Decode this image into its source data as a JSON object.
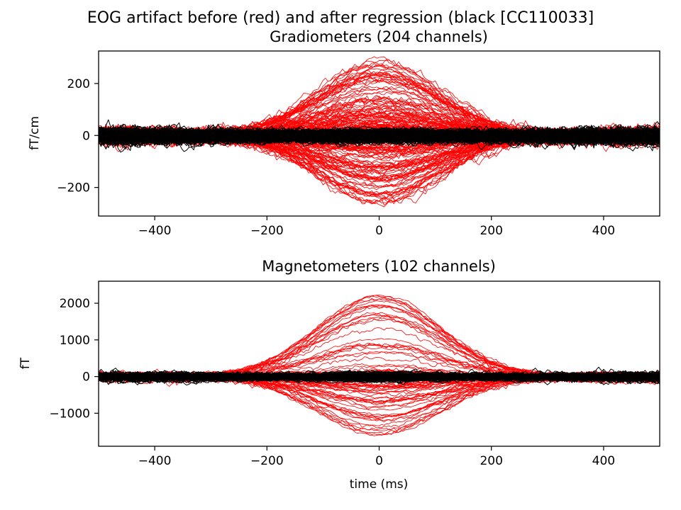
{
  "figure": {
    "suptitle": "EOG artifact before (red) and after regression (black [CC110033]"
  },
  "colors": {
    "before": "#ff0000",
    "after": "#000000",
    "axes": "#000000",
    "background": "#ffffff"
  },
  "chart_data": [
    {
      "type": "line",
      "title": "Gradiometers (204 channels)",
      "xlabel": "",
      "ylabel": "fT/cm",
      "xlim": [
        -500,
        500
      ],
      "ylim": [
        -310,
        325
      ],
      "xticks": [
        -400,
        -200,
        0,
        200,
        400
      ],
      "xtick_labels": [
        "−400",
        "−200",
        "0",
        "200",
        "400"
      ],
      "yticks": [
        -200,
        0,
        200
      ],
      "ytick_labels": [
        "−200",
        "0",
        "200"
      ],
      "grid": false,
      "series": [
        {
          "color": "#ff0000",
          "count": 204,
          "peak_time_ms": 0,
          "peak_width_ms": 110,
          "max_peak": 290,
          "min_peak": -275,
          "noise_amplitude": 14
        },
        {
          "color": "#000000",
          "count": 204,
          "peak_time_ms": 0,
          "peak_width_ms": 110,
          "max_peak": 18,
          "min_peak": -18,
          "noise_amplitude": 14
        }
      ]
    },
    {
      "type": "line",
      "title": "Magnetometers (102 channels)",
      "xlabel": "time (ms)",
      "ylabel": "fT",
      "xlim": [
        -500,
        500
      ],
      "ylim": [
        -1900,
        2600
      ],
      "xticks": [
        -400,
        -200,
        0,
        200,
        400
      ],
      "xtick_labels": [
        "−400",
        "−200",
        "0",
        "200",
        "400"
      ],
      "yticks": [
        -1000,
        0,
        1000,
        2000
      ],
      "ytick_labels": [
        "−1000",
        "0",
        "1000",
        "2000"
      ],
      "grid": false,
      "series": [
        {
          "color": "#ff0000",
          "count": 102,
          "peak_time_ms": 0,
          "peak_width_ms": 110,
          "max_peak": 2350,
          "min_peak": -1750,
          "noise_amplitude": 60
        },
        {
          "color": "#000000",
          "count": 102,
          "peak_time_ms": 0,
          "peak_width_ms": 110,
          "max_peak": 120,
          "min_peak": -120,
          "noise_amplitude": 60
        }
      ]
    }
  ]
}
